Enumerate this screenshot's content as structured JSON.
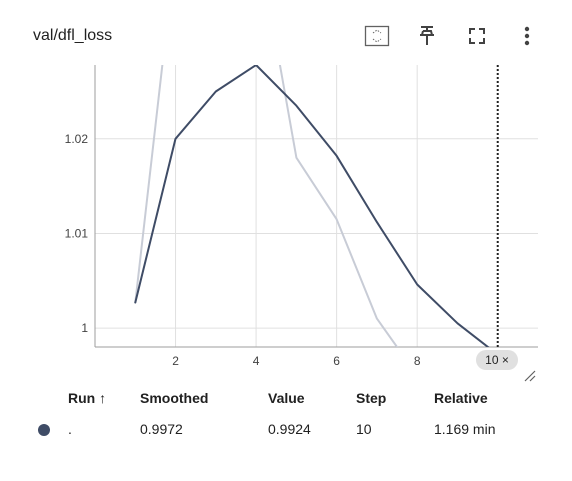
{
  "card": {
    "title": "val/dfl_loss"
  },
  "toolbar": {
    "icons": [
      "fit-domain-icon",
      "pin-icon",
      "fullscreen-icon",
      "more-vert-icon"
    ]
  },
  "chart_data": {
    "type": "line",
    "title": "val/dfl_loss",
    "xlabel": "",
    "ylabel": "",
    "xlim": [
      0,
      11
    ],
    "ylim": [
      0.998,
      1.0278
    ],
    "x_ticks": [
      2,
      4,
      6,
      8
    ],
    "y_ticks": [
      1,
      1.01,
      1.02
    ],
    "x_tick_labels": [
      "2",
      "4",
      "6",
      "8"
    ],
    "y_tick_labels": [
      "1",
      "1.01",
      "1.02"
    ],
    "grid": true,
    "series": [
      {
        "role": "smoothed",
        "color": "#3f4c66",
        "x": [
          1,
          2,
          3,
          4,
          5,
          6,
          7,
          8,
          9,
          10
        ],
        "y": [
          1.0027,
          1.02,
          1.025,
          1.0278,
          1.0235,
          1.0182,
          1.0112,
          1.0046,
          1.0005,
          0.9972
        ]
      },
      {
        "role": "raw",
        "color": "#c8ccd6",
        "x": [
          1,
          2,
          4,
          5,
          6,
          7,
          8,
          9,
          10
        ],
        "y": [
          1.0027,
          1.04,
          1.042,
          1.018,
          1.0115,
          1.001,
          0.995,
          0.993,
          0.9924
        ]
      }
    ],
    "marker_step": 10,
    "step_badge": "10 ×"
  },
  "legend": {
    "headers": {
      "run": "Run ↑",
      "smoothed": "Smoothed",
      "value": "Value",
      "step": "Step",
      "relative": "Relative"
    },
    "rows": [
      {
        "color": "#3f4c66",
        "run": ".",
        "smoothed": "0.9972",
        "value": "0.9924",
        "step": "10",
        "relative": "1.169 min"
      }
    ]
  }
}
